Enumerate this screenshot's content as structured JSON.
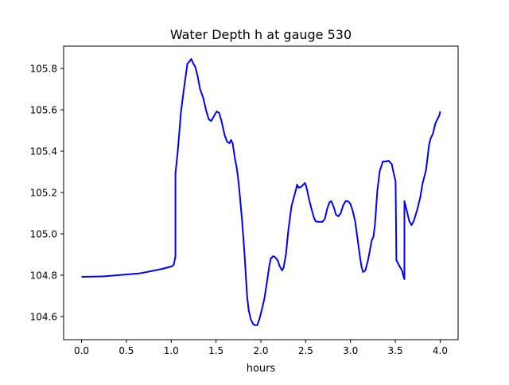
{
  "chart_data": {
    "type": "line",
    "title": "Water Depth h at gauge 530",
    "xlabel": "hours",
    "ylabel": "",
    "xlim": [
      -0.2,
      4.2
    ],
    "ylim": [
      104.488,
      105.908
    ],
    "xticks": [
      0.0,
      0.5,
      1.0,
      1.5,
      2.0,
      2.5,
      3.0,
      3.5,
      4.0
    ],
    "xtick_labels": [
      "0.0",
      "0.5",
      "1.0",
      "1.5",
      "2.0",
      "2.5",
      "3.0",
      "3.5",
      "4.0"
    ],
    "yticks": [
      104.6,
      104.8,
      105.0,
      105.2,
      105.4,
      105.6,
      105.8
    ],
    "ytick_labels": [
      "104.6",
      "104.8",
      "105.0",
      "105.2",
      "105.4",
      "105.6",
      "105.8"
    ],
    "grid": false,
    "series": [
      {
        "name": "h",
        "color": "#0000ff",
        "x": [
          0.0,
          0.239,
          0.639,
          0.772,
          0.905,
          1.002,
          1.029,
          1.047,
          1.047,
          1.073,
          1.109,
          1.144,
          1.18,
          1.206,
          1.224,
          1.242,
          1.268,
          1.295,
          1.322,
          1.357,
          1.392,
          1.419,
          1.446,
          1.481,
          1.508,
          1.534,
          1.561,
          1.596,
          1.623,
          1.65,
          1.667,
          1.685,
          1.712,
          1.729,
          1.747,
          1.765,
          1.792,
          1.818,
          1.845,
          1.863,
          1.889,
          1.916,
          1.933,
          1.96,
          1.987,
          2.013,
          2.04,
          2.067,
          2.093,
          2.111,
          2.138,
          2.164,
          2.191,
          2.208,
          2.235,
          2.253,
          2.279,
          2.306,
          2.341,
          2.368,
          2.395,
          2.404,
          2.421,
          2.448,
          2.474,
          2.492,
          2.51,
          2.537,
          2.563,
          2.59,
          2.608,
          2.634,
          2.661,
          2.687,
          2.714,
          2.741,
          2.767,
          2.785,
          2.812,
          2.838,
          2.865,
          2.891,
          2.918,
          2.945,
          2.971,
          2.998,
          3.024,
          3.051,
          3.078,
          3.104,
          3.122,
          3.14,
          3.166,
          3.193,
          3.211,
          3.237,
          3.255,
          3.273,
          3.299,
          3.326,
          3.361,
          3.397,
          3.423,
          3.459,
          3.486,
          3.503,
          3.512,
          3.548,
          3.574,
          3.592,
          3.601,
          3.601,
          3.628,
          3.654,
          3.681,
          3.708,
          3.743,
          3.778,
          3.805,
          3.84,
          3.858,
          3.876,
          3.894,
          3.92,
          3.947,
          3.973,
          3.991,
          4.0
        ],
        "y": [
          104.792,
          104.794,
          104.808,
          104.819,
          104.831,
          104.842,
          104.85,
          104.892,
          105.292,
          105.4,
          105.592,
          105.708,
          105.823,
          105.835,
          105.846,
          105.827,
          105.808,
          105.762,
          105.7,
          105.658,
          105.592,
          105.554,
          105.546,
          105.573,
          105.592,
          105.585,
          105.546,
          105.477,
          105.446,
          105.438,
          105.454,
          105.438,
          105.362,
          105.323,
          105.265,
          105.188,
          105.054,
          104.9,
          104.708,
          104.631,
          104.585,
          104.562,
          104.558,
          104.558,
          104.592,
          104.638,
          104.688,
          104.765,
          104.842,
          104.881,
          104.892,
          104.885,
          104.869,
          104.846,
          104.823,
          104.835,
          104.9,
          105.015,
          105.131,
          105.177,
          105.219,
          105.238,
          105.223,
          105.227,
          105.238,
          105.246,
          105.223,
          105.169,
          105.123,
          105.081,
          105.062,
          105.058,
          105.058,
          105.058,
          105.073,
          105.123,
          105.154,
          105.158,
          105.131,
          105.092,
          105.085,
          105.1,
          105.138,
          105.158,
          105.158,
          105.146,
          105.112,
          105.062,
          104.977,
          104.892,
          104.842,
          104.815,
          104.823,
          104.869,
          104.908,
          104.969,
          104.985,
          105.046,
          105.208,
          105.304,
          105.35,
          105.35,
          105.354,
          105.338,
          105.285,
          105.254,
          104.873,
          104.842,
          104.823,
          104.792,
          104.781,
          105.158,
          105.112,
          105.062,
          105.042,
          105.065,
          105.115,
          105.177,
          105.246,
          105.304,
          105.362,
          105.431,
          105.462,
          105.485,
          105.535,
          105.558,
          105.573,
          105.592
        ]
      }
    ]
  }
}
